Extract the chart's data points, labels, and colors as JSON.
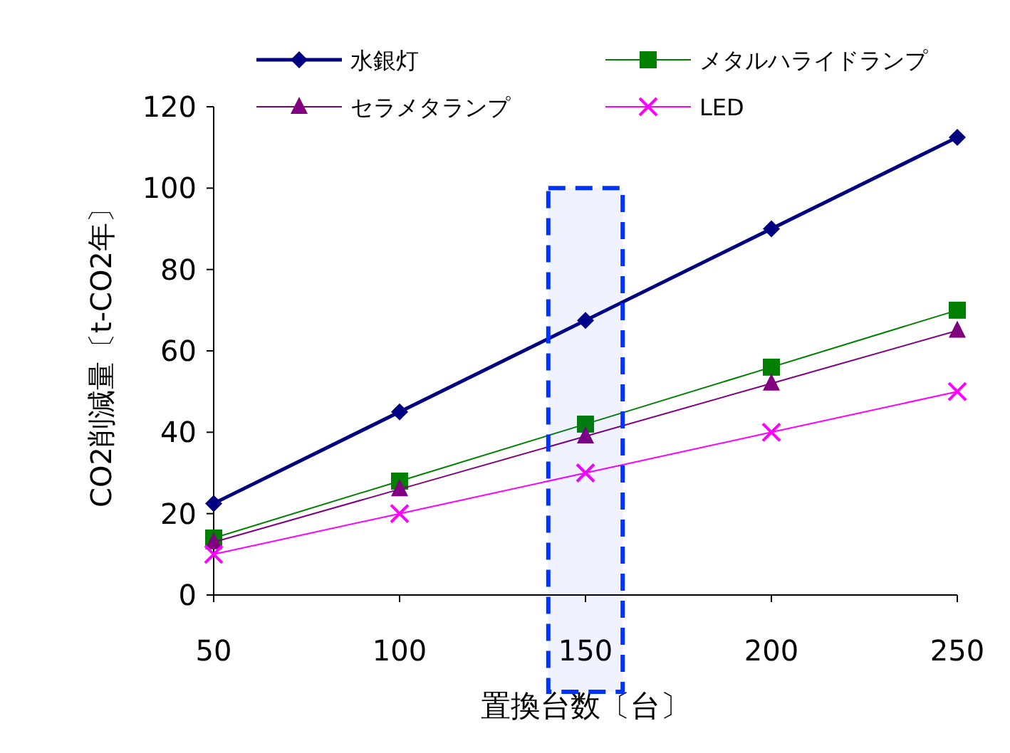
{
  "chart_data": {
    "type": "line",
    "xlabel": "置換台数〔台〕",
    "ylabel": "CO2削減量〔t-CO2年〕",
    "x": [
      50,
      100,
      150,
      200,
      250
    ],
    "xlim": [
      50,
      250
    ],
    "xticks": [
      50,
      100,
      150,
      200,
      250
    ],
    "ylim": [
      0,
      120
    ],
    "yticks": [
      0,
      20,
      40,
      60,
      80,
      100,
      120
    ],
    "grid": false,
    "legend": "top",
    "series": [
      {
        "name": "水銀灯",
        "color": "#000080",
        "marker": "diamond",
        "values": [
          22.5,
          45,
          67.5,
          90,
          112.5
        ]
      },
      {
        "name": "メタルハライドランプ",
        "color": "#008000",
        "marker": "square",
        "values": [
          14,
          28,
          42,
          56,
          70
        ]
      },
      {
        "name": "セラメタランプ",
        "color": "#800080",
        "marker": "triangle",
        "values": [
          13,
          26,
          39,
          52,
          65
        ]
      },
      {
        "name": "LED",
        "color": "#ff00ff",
        "marker": "cross",
        "values": [
          10,
          20,
          30,
          40,
          50
        ]
      }
    ],
    "bands": [
      {
        "axis": "x",
        "from": 140,
        "to": 160,
        "color": "#0033ff"
      }
    ]
  }
}
